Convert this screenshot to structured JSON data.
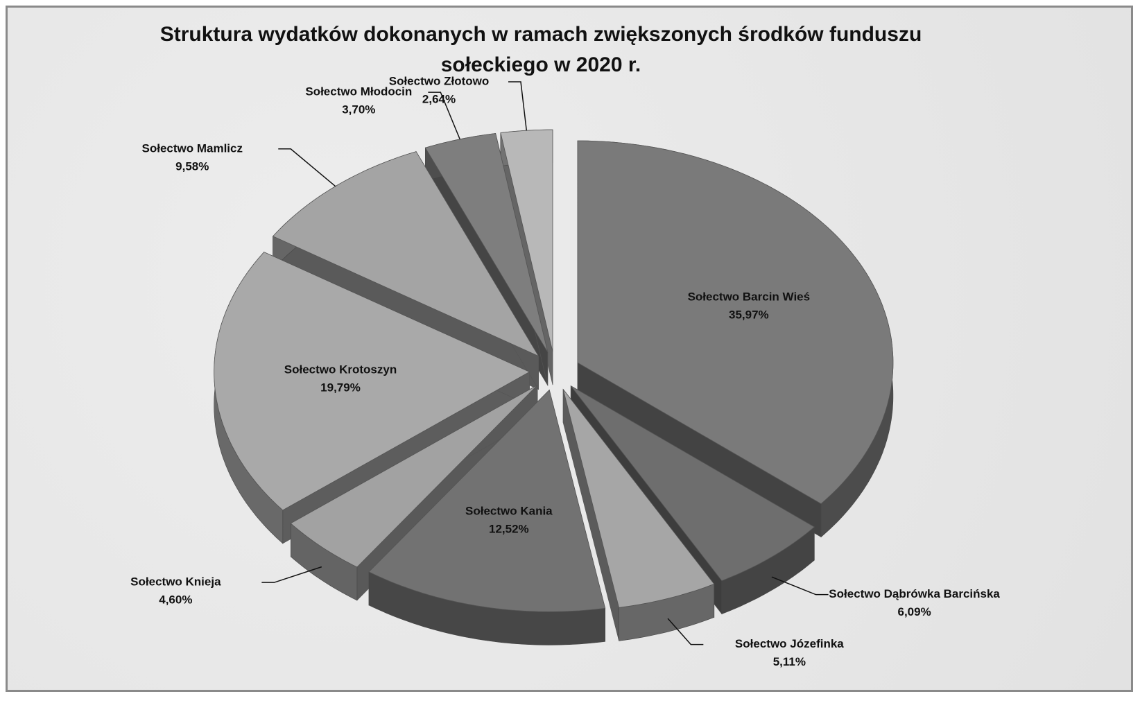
{
  "chart_data": {
    "type": "pie3d",
    "title": "Struktura wydatków dokonanych w ramach zwiększonych środków funduszu sołeckiego w 2020 r.",
    "categories": [
      "Sołectwo Barcin Wieś",
      "Sołectwo Dąbrówka Barcińska",
      "Sołectwo Józefinka",
      "Sołectwo Kania",
      "Sołectwo Knieja",
      "Sołectwo Krotoszyn",
      "Sołectwo Mamlicz",
      "Sołectwo Młodocin",
      "Sołectwo Złotowo"
    ],
    "values": [
      35.97,
      6.09,
      5.11,
      12.52,
      4.6,
      19.79,
      9.58,
      3.7,
      2.64
    ],
    "value_labels": [
      "35,97%",
      "6,09%",
      "5,11%",
      "12,52%",
      "4,60%",
      "19,79%",
      "9,58%",
      "3,70%",
      "2,64%"
    ],
    "colors": [
      "#7a7a7a",
      "#6e6e6e",
      "#a6a6a6",
      "#727272",
      "#a2a2a2",
      "#a9a9a9",
      "#a4a4a4",
      "#7e7e7e",
      "#b8b8b8"
    ]
  }
}
